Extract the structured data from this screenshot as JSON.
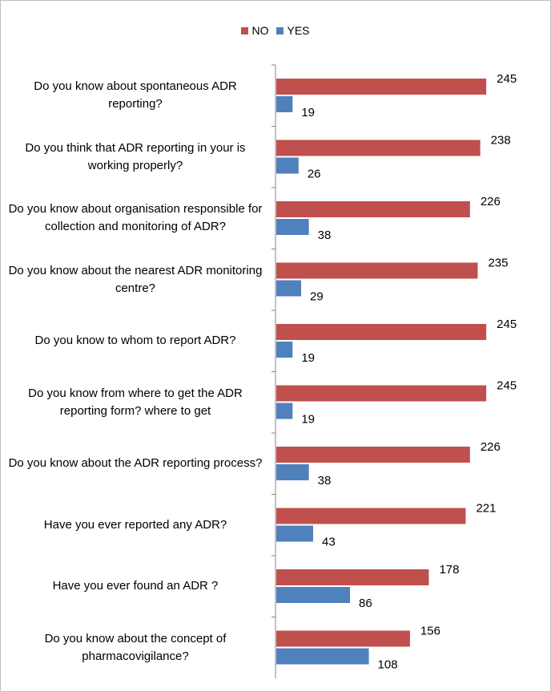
{
  "chart_data": {
    "type": "bar",
    "orientation": "horizontal",
    "categories": [
      "Do you know  about spontaneous ADR reporting?",
      "Do you think that ADR reporting in your is working properly?",
      "Do you know about organisation responsible for collection  and monitoring of ADR?",
      "Do you know about the nearest  ADR monitoring centre?",
      "Do you know to whom to report ADR?",
      "Do you know from where to get the ADR reporting form? where to get",
      "Do you know about the  ADR reporting process?",
      "Have you ever reported any  ADR?",
      "Have you ever found an ADR ?",
      "Do you know about the concept of pharmacovigilance?"
    ],
    "series": [
      {
        "name": "NO",
        "color": "#c0504d",
        "values": [
          245,
          238,
          226,
          235,
          245,
          245,
          226,
          221,
          178,
          156
        ]
      },
      {
        "name": "YES",
        "color": "#4f81bd",
        "values": [
          19,
          26,
          38,
          29,
          19,
          19,
          38,
          43,
          86,
          108
        ]
      }
    ],
    "legend": {
      "position": "top"
    },
    "grid": false,
    "xlim": [
      0,
      300
    ]
  }
}
